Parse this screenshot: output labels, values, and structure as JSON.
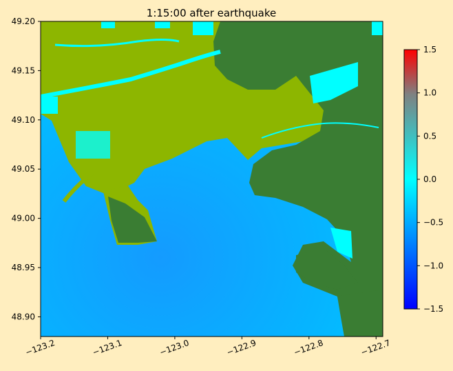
{
  "chart_data": {
    "type": "heatmap",
    "title": "1:15:00 after earthquake",
    "xlabel": "",
    "ylabel": "",
    "xlim": [
      -123.2,
      -122.69
    ],
    "ylim": [
      48.88,
      49.2
    ],
    "xticks": [
      -123.2,
      -123.1,
      -123.0,
      -122.9,
      -122.8,
      -122.7
    ],
    "xtick_labels": [
      "−123.2",
      "−123.1",
      "−123.0",
      "−122.9",
      "−122.8",
      "−122.7"
    ],
    "yticks": [
      48.9,
      48.95,
      49.0,
      49.05,
      49.1,
      49.15,
      49.2
    ],
    "ytick_labels": [
      "48.90",
      "48.95",
      "49.00",
      "49.05",
      "49.10",
      "49.15",
      "49.20"
    ],
    "grid": false,
    "colorbar": {
      "range": [
        -1.5,
        1.5
      ],
      "ticks": [
        1.5,
        1.0,
        0.5,
        0.0,
        -0.5,
        -1.0,
        -1.5
      ],
      "tick_labels": [
        "1.5",
        "1.0",
        "0.5",
        "0.0",
        "−0.5",
        "−1.0",
        "−1.5"
      ],
      "colors": {
        "low": "#0000ff",
        "mid": "#00ffff",
        "high": "#ff0000",
        "midhigh": "#808080"
      }
    },
    "field_colors": {
      "water": "#00bfff",
      "deep_water": "#1a8cff",
      "land_lowland": "#8db600",
      "land_upland": "#3a7d33",
      "flooded": "#00ffff"
    }
  }
}
